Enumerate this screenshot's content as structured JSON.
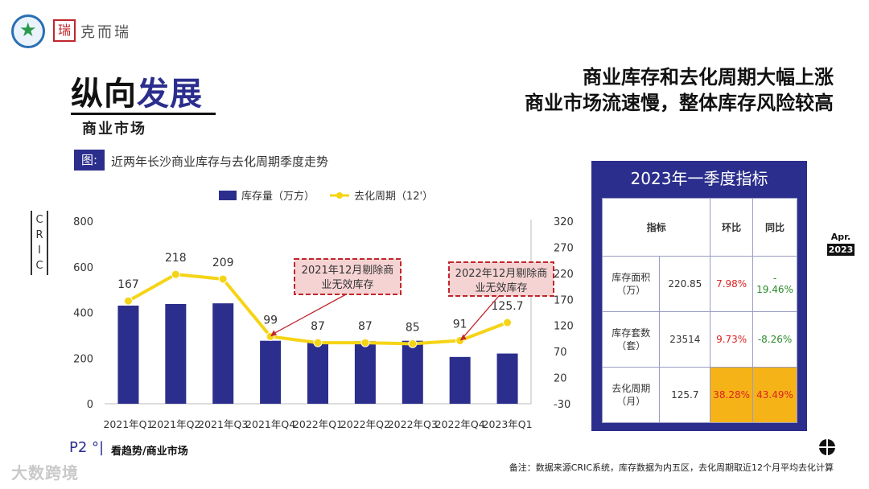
{
  "logo": {
    "seal": "瑞",
    "brand": "克而瑞"
  },
  "title": {
    "part1": "纵向",
    "part2": "发展",
    "subtitle": "商业市场"
  },
  "headline": {
    "line1": "商业库存和去化周期大幅上涨",
    "line2": "商业市场流速慢，整体库存风险较高"
  },
  "figure": {
    "tag": "图:",
    "caption": "近两年长沙商业库存与去化周期季度走势"
  },
  "side_label": "CRIC",
  "chart_data": {
    "type": "bar+line",
    "categories": [
      "2021年Q1",
      "2021年Q2",
      "2021年Q3",
      "2021年Q4",
      "2022年Q1",
      "2022年Q2",
      "2022年Q3",
      "2022年Q4",
      "2023年Q1"
    ],
    "series": [
      {
        "name": "库存量（万方）",
        "type": "bar",
        "axis": "left",
        "color": "#2b2e8c",
        "values": [
          430,
          437,
          440,
          276,
          270,
          274,
          276,
          205,
          220
        ]
      },
      {
        "name": "去化周期（12'）",
        "type": "line",
        "axis": "right",
        "color": "#f5d416",
        "values": [
          167,
          218,
          209,
          99,
          87,
          87,
          85,
          91,
          125.7
        ]
      }
    ],
    "data_labels": [
      "167",
      "218",
      "209",
      "99",
      "87",
      "87",
      "85",
      "91",
      "125.7"
    ],
    "y_left": {
      "ticks": [
        "0",
        "200",
        "400",
        "600",
        "800"
      ],
      "range": [
        0,
        800
      ]
    },
    "y_right": {
      "ticks": [
        "-30",
        "20",
        "70",
        "120",
        "170",
        "220",
        "270",
        "320"
      ],
      "range": [
        -30,
        320
      ]
    },
    "annotations": [
      {
        "text1": "2021年12月剔除商",
        "text2": "业无效库存",
        "target_index": 3
      },
      {
        "text1": "2022年12月剔除商",
        "text2": "业无效库存",
        "target_index": 7
      }
    ],
    "legend_position": "top"
  },
  "panel": {
    "title": "2023年一季度指标",
    "headers": {
      "metric": "指标",
      "mom": "环比",
      "yoy": "同比"
    },
    "rows": [
      {
        "metric1": "库存面积",
        "metric2": "（万）",
        "value": "220.85",
        "mom": "7.98%",
        "yoy1": "-",
        "yoy2": "19.46%"
      },
      {
        "metric1": "库存套数",
        "metric2": "（套）",
        "value": "23514",
        "mom": "9.73%",
        "yoy1": "-8.26%",
        "yoy2": ""
      },
      {
        "metric1": "去化周期",
        "metric2": "（月）",
        "value": "125.7",
        "mom": "38.28%",
        "yoy1": "43.49%",
        "yoy2": ""
      }
    ]
  },
  "badge": {
    "month": "Apr.",
    "year": "2023"
  },
  "footer": {
    "page": "P2 °|",
    "section": "看趋势/商业市场",
    "note": "备注：数据来源CRIC系统，库存数据为内五区，去化周期取近12个月平均去化计算",
    "watermark": "大数跨境"
  }
}
